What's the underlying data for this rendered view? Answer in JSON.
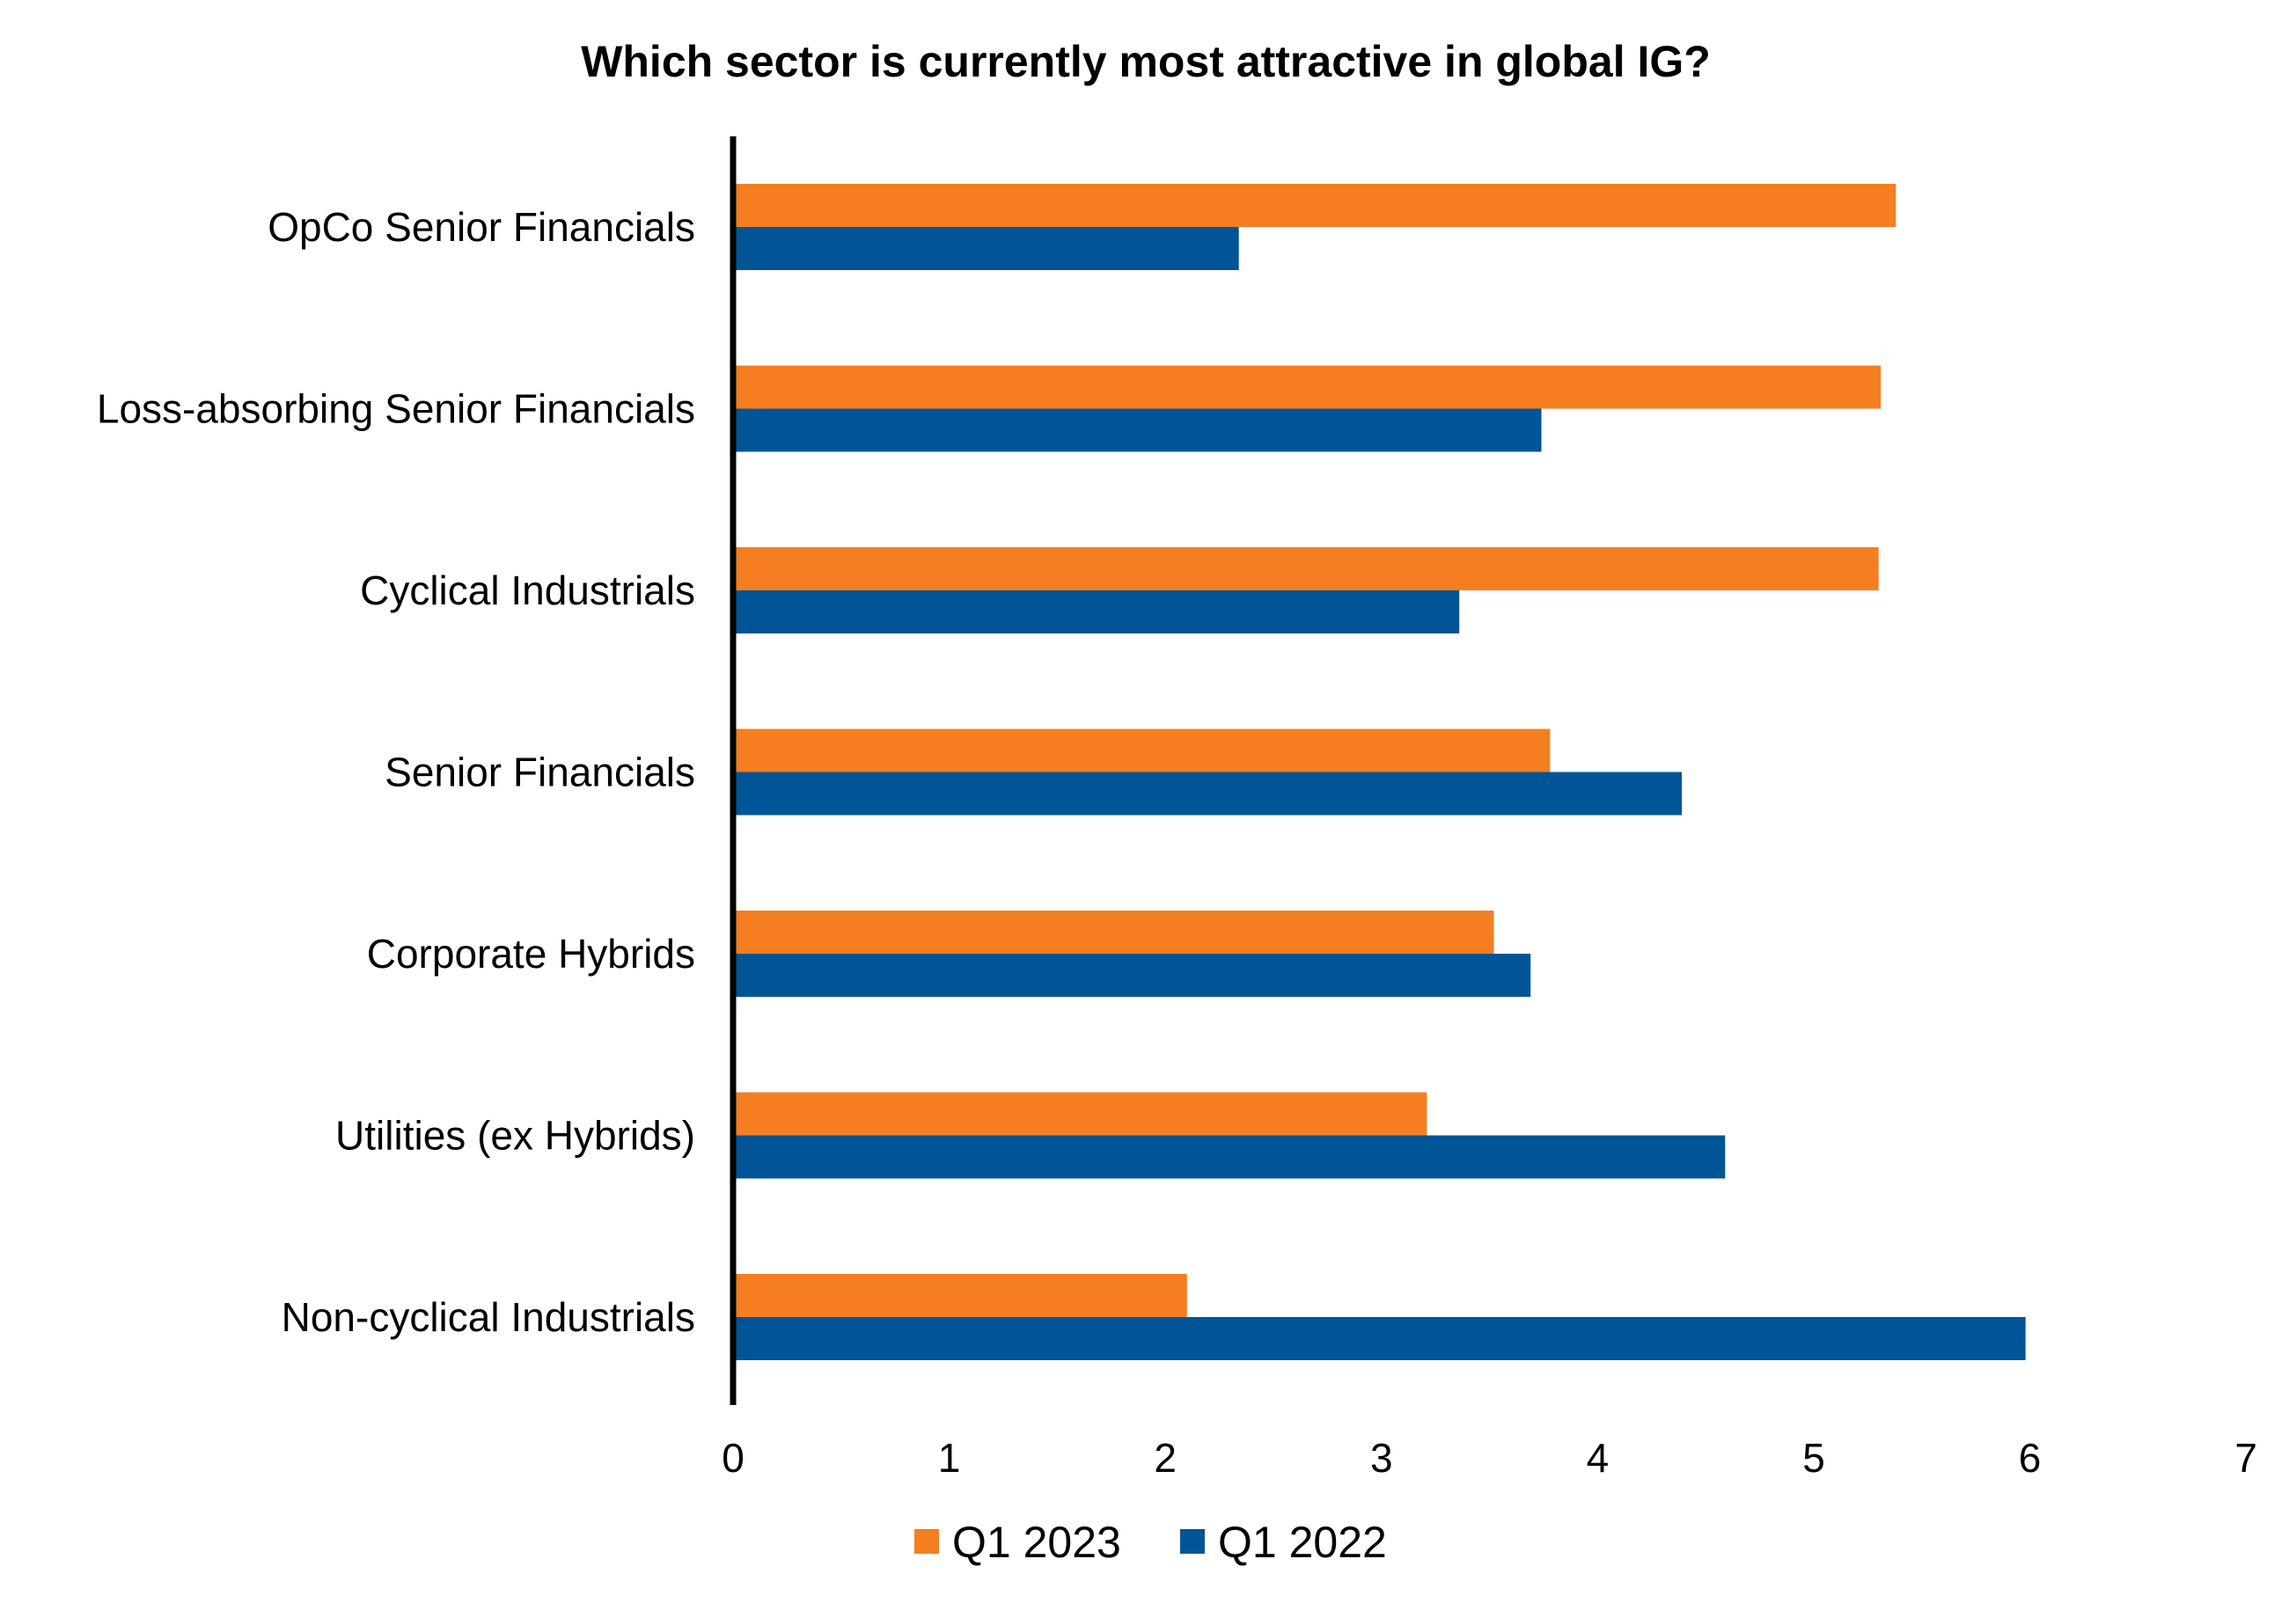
{
  "chart_data": {
    "type": "bar",
    "orientation": "horizontal",
    "title": "Which sector is currently most attractive in global IG?",
    "xlabel": "",
    "ylabel": "",
    "categories": [
      "OpCo Senior Financials",
      "Loss-absorbing Senior Financials",
      "Cyclical Industrials",
      "Senior Financials",
      "Corporate Hybrids",
      "Utilities (ex Hybrids)",
      "Non-cyclical Industrials"
    ],
    "series": [
      {
        "name": "Q1 2023",
        "color": "#F47E20",
        "values": [
          5.38,
          5.31,
          5.3,
          3.78,
          3.52,
          3.21,
          2.1
        ]
      },
      {
        "name": "Q1 2022",
        "color": "#005597",
        "values": [
          2.34,
          3.74,
          3.36,
          4.39,
          3.69,
          4.59,
          5.98
        ]
      }
    ],
    "xlim": [
      0,
      7
    ],
    "xticks": [
      "0",
      "1",
      "2",
      "3",
      "4",
      "5",
      "6",
      "7"
    ],
    "grid": false,
    "legend_position": "bottom-center"
  }
}
